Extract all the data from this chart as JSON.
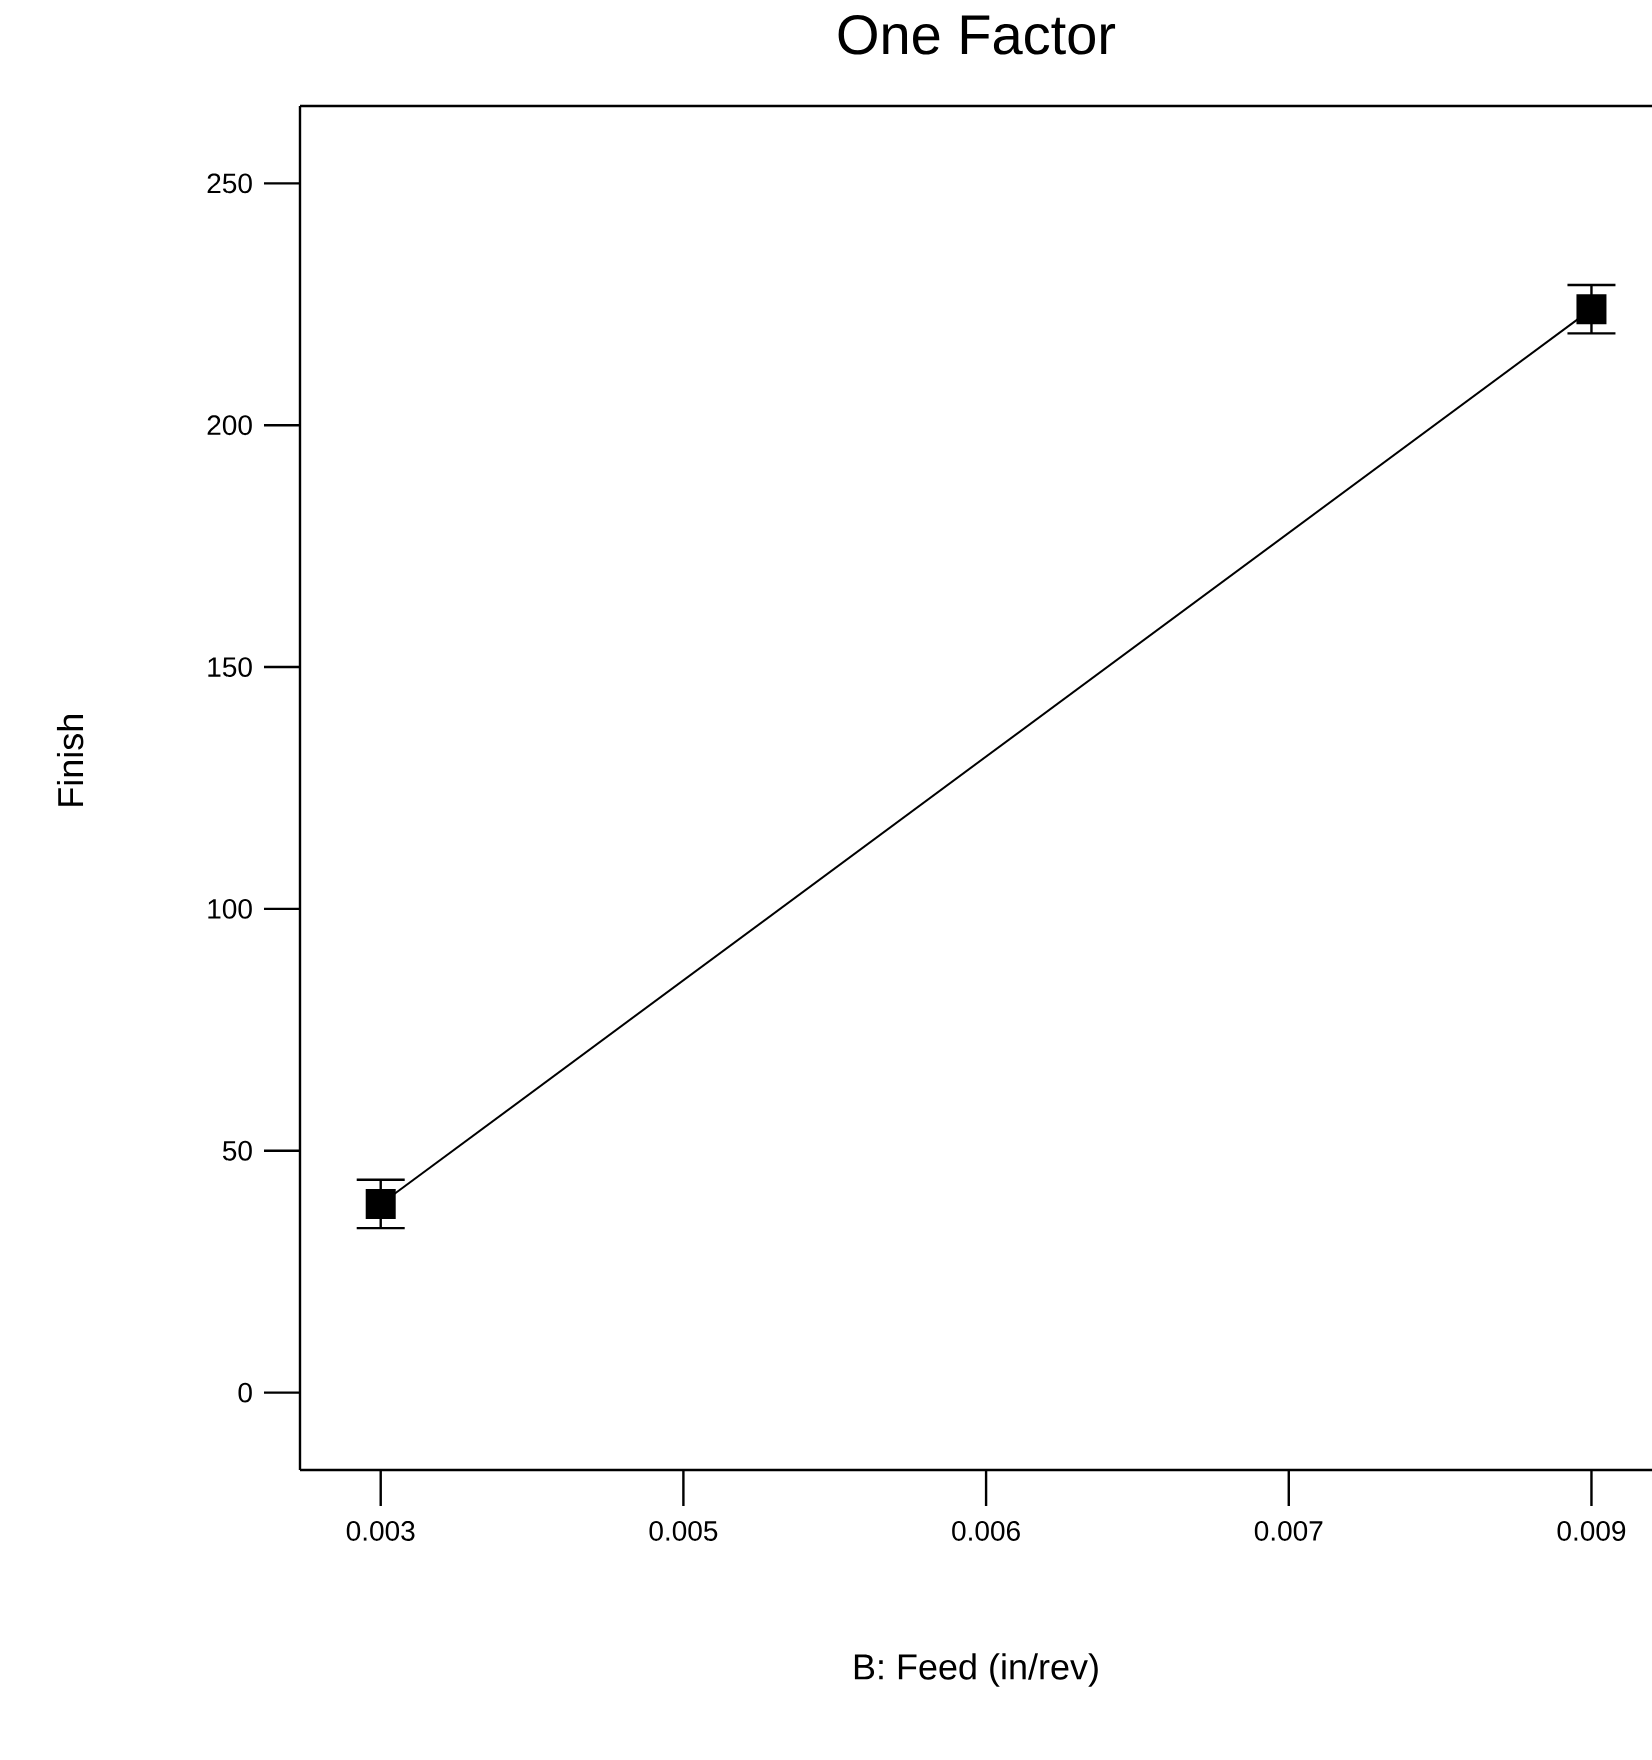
{
  "chart_data": {
    "type": "line",
    "title": "One Factor",
    "xlabel": "B: Feed (in/rev)",
    "ylabel": "Finish",
    "x": [
      0.003,
      0.009
    ],
    "values": [
      39,
      224
    ],
    "errors": [
      5,
      5
    ],
    "color": "#000000",
    "marker": "square",
    "xlim": [
      0.0026,
      0.0093
    ],
    "ylim": [
      -16,
      266
    ],
    "xticks": [
      0.003,
      {
        "value": 0.0045,
        "label": "0.005"
      },
      0.006,
      {
        "value": 0.0075,
        "label": "0.007"
      },
      0.009
    ],
    "yticks": [
      0,
      50,
      100,
      150,
      200,
      250
    ]
  }
}
